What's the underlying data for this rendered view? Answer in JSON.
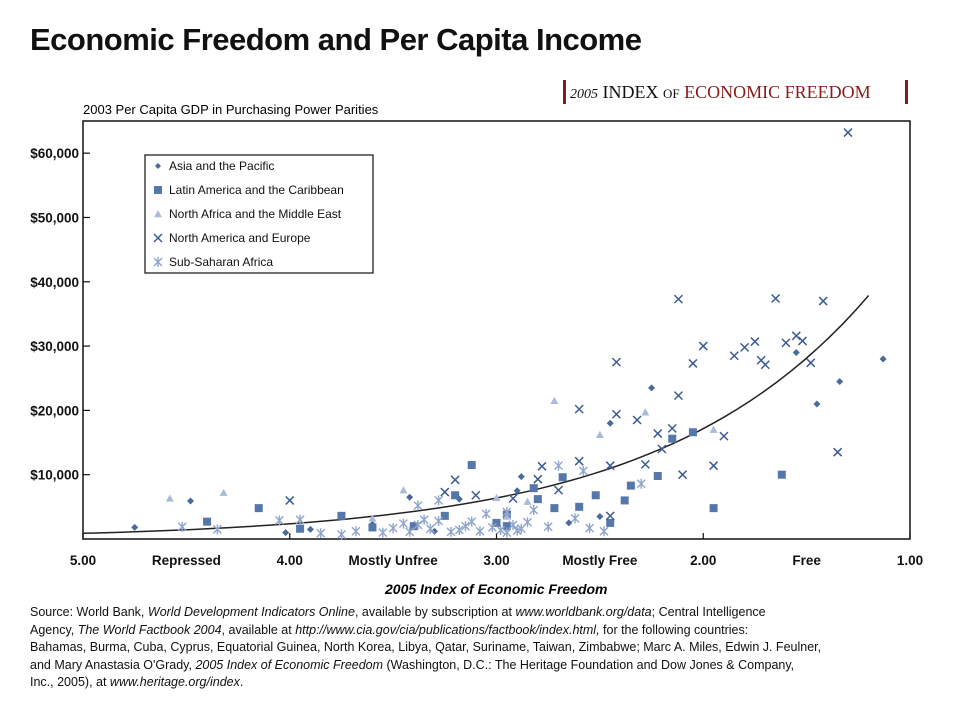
{
  "header": {
    "title": "Economic Freedom and Per Capita Income",
    "brand_year": "2005",
    "brand_index": "INDEX",
    "brand_of": "OF",
    "brand_name": "ECONOMIC FREEDOM"
  },
  "chart_data": {
    "type": "scatter",
    "ylabel": "2003 Per Capita GDP in Purchasing Power Parities",
    "xlabel": "2005 Index of Economic Freedom",
    "xlim": [
      5.0,
      1.0
    ],
    "ylim": [
      0,
      65000
    ],
    "x_reversed": true,
    "x_ticks": [
      "5.00",
      "4.00",
      "3.00",
      "2.00",
      "1.00"
    ],
    "x_tick_values": [
      5.0,
      4.0,
      3.0,
      2.0,
      1.0
    ],
    "x_category_labels": [
      "Repressed",
      "Mostly Unfree",
      "Mostly Free",
      "Free"
    ],
    "x_category_values": [
      4.5,
      3.5,
      2.5,
      1.5
    ],
    "y_ticks": [
      "$10,000",
      "$20,000",
      "$30,000",
      "$40,000",
      "$50,000",
      "$60,000"
    ],
    "y_tick_values": [
      10000,
      20000,
      30000,
      40000,
      50000,
      60000
    ],
    "grid": false,
    "legend_position": "top-left",
    "series": [
      {
        "name": "Asia and the Pacific",
        "marker": "diamond",
        "color": "#4a6a9c",
        "points": [
          [
            4.75,
            1800
          ],
          [
            4.48,
            5900
          ],
          [
            4.02,
            1000
          ],
          [
            3.6,
            2300
          ],
          [
            3.42,
            6500
          ],
          [
            3.18,
            6200
          ],
          [
            2.88,
            9700
          ],
          [
            2.9,
            7500
          ],
          [
            2.65,
            2500
          ],
          [
            2.5,
            3500
          ],
          [
            2.45,
            18000
          ],
          [
            2.25,
            23500
          ],
          [
            1.55,
            29000
          ],
          [
            1.45,
            21000
          ],
          [
            1.34,
            24500
          ],
          [
            1.13,
            28000
          ],
          [
            3.9,
            1500
          ],
          [
            3.3,
            1200
          ]
        ]
      },
      {
        "name": "Latin America and the Caribbean",
        "marker": "square",
        "color": "#5577aa",
        "points": [
          [
            4.4,
            2700
          ],
          [
            4.15,
            4800
          ],
          [
            3.95,
            1600
          ],
          [
            3.75,
            3600
          ],
          [
            3.4,
            2000
          ],
          [
            3.2,
            6800
          ],
          [
            3.12,
            11500
          ],
          [
            3.0,
            2500
          ],
          [
            2.95,
            3800
          ],
          [
            2.82,
            7900
          ],
          [
            2.8,
            6200
          ],
          [
            2.72,
            4800
          ],
          [
            2.68,
            9600
          ],
          [
            2.6,
            5000
          ],
          [
            2.52,
            6800
          ],
          [
            2.45,
            2500
          ],
          [
            2.38,
            6000
          ],
          [
            2.35,
            8300
          ],
          [
            2.22,
            9800
          ],
          [
            2.15,
            15600
          ],
          [
            2.05,
            16600
          ],
          [
            1.95,
            4800
          ],
          [
            1.62,
            10000
          ],
          [
            3.6,
            1800
          ],
          [
            3.25,
            3600
          ],
          [
            2.95,
            2000
          ]
        ]
      },
      {
        "name": "North Africa and the Middle East",
        "marker": "triangle",
        "color": "#aabbd8",
        "points": [
          [
            4.58,
            6300
          ],
          [
            4.32,
            7200
          ],
          [
            3.6,
            3200
          ],
          [
            2.95,
            3500
          ],
          [
            2.85,
            5800
          ],
          [
            2.5,
            16200
          ],
          [
            2.72,
            21500
          ],
          [
            2.28,
            19700
          ],
          [
            1.95,
            17000
          ],
          [
            3.45,
            7600
          ],
          [
            3.0,
            6400
          ]
        ]
      },
      {
        "name": "North America and Europe",
        "marker": "x",
        "color": "#3d5c94",
        "points": [
          [
            4.0,
            6000
          ],
          [
            3.25,
            7300
          ],
          [
            3.2,
            9200
          ],
          [
            3.1,
            6800
          ],
          [
            2.92,
            6300
          ],
          [
            2.78,
            11300
          ],
          [
            2.7,
            7600
          ],
          [
            2.6,
            12100
          ],
          [
            2.45,
            11400
          ],
          [
            2.6,
            20200
          ],
          [
            2.42,
            19400
          ],
          [
            2.42,
            27500
          ],
          [
            2.32,
            18500
          ],
          [
            2.28,
            11600
          ],
          [
            2.2,
            14000
          ],
          [
            2.15,
            17200
          ],
          [
            2.12,
            22300
          ],
          [
            2.12,
            37300
          ],
          [
            2.1,
            10000
          ],
          [
            2.05,
            27300
          ],
          [
            2.0,
            30000
          ],
          [
            1.95,
            11400
          ],
          [
            1.9,
            16000
          ],
          [
            1.85,
            28500
          ],
          [
            1.8,
            29800
          ],
          [
            1.75,
            30700
          ],
          [
            1.72,
            27800
          ],
          [
            1.7,
            27100
          ],
          [
            1.65,
            37400
          ],
          [
            1.6,
            30500
          ],
          [
            1.55,
            31600
          ],
          [
            1.52,
            30800
          ],
          [
            1.48,
            27400
          ],
          [
            1.42,
            37000
          ],
          [
            1.35,
            13500
          ],
          [
            1.3,
            63200
          ],
          [
            2.8,
            9300
          ],
          [
            2.45,
            3600
          ],
          [
            2.22,
            16400
          ]
        ]
      },
      {
        "name": "Sub-Saharan Africa",
        "marker": "asterisk",
        "color": "#8fa5cc",
        "points": [
          [
            4.52,
            1900
          ],
          [
            4.35,
            1500
          ],
          [
            4.05,
            2900
          ],
          [
            3.95,
            3000
          ],
          [
            3.85,
            900
          ],
          [
            3.75,
            700
          ],
          [
            3.68,
            1200
          ],
          [
            3.55,
            1000
          ],
          [
            3.5,
            1700
          ],
          [
            3.45,
            2400
          ],
          [
            3.42,
            1100
          ],
          [
            3.38,
            2200
          ],
          [
            3.35,
            3000
          ],
          [
            3.32,
            1600
          ],
          [
            3.28,
            2800
          ],
          [
            3.22,
            1100
          ],
          [
            3.18,
            1400
          ],
          [
            3.15,
            2000
          ],
          [
            3.12,
            2700
          ],
          [
            3.08,
            1200
          ],
          [
            3.05,
            3900
          ],
          [
            3.02,
            1800
          ],
          [
            2.98,
            1400
          ],
          [
            2.95,
            1000
          ],
          [
            2.92,
            2200
          ],
          [
            2.9,
            1300
          ],
          [
            2.88,
            1600
          ],
          [
            2.85,
            2600
          ],
          [
            2.82,
            4500
          ],
          [
            2.75,
            1900
          ],
          [
            2.7,
            11400
          ],
          [
            2.62,
            3200
          ],
          [
            2.58,
            10600
          ],
          [
            2.55,
            1700
          ],
          [
            2.3,
            8600
          ],
          [
            2.48,
            1200
          ],
          [
            3.38,
            5200
          ],
          [
            3.28,
            6000
          ],
          [
            2.95,
            4200
          ]
        ]
      }
    ],
    "trend_line": true
  },
  "source": {
    "l1a": "Source: World Bank, ",
    "l1b": "World Development Indicators Online",
    "l1c": ", available by subscription at ",
    "l1d": "www.worldbank.org/data",
    "l1e": "; Central Intelligence",
    "l2a": "Agency, ",
    "l2b": "The World Factbook 2004",
    "l2c": ", available at ",
    "l2d": "http://www.cia.gov/cia/publications/factbook/index.html,",
    "l2e": " for the following countries:",
    "l3": "Bahamas, Burma, Cuba, Cyprus, Equatorial Guinea, North Korea, Libya, Qatar, Suriname, Taiwan, Zimbabwe; Marc A. Miles, Edwin J. Feulner,",
    "l4a": "and Mary Anastasia O'Grady, ",
    "l4b": "2005 Index of Economic Freedom",
    "l4c": " (Washington, D.C.: The Heritage Foundation and Dow Jones & Company,",
    "l5a": "Inc., 2005), at ",
    "l5b": "www.heritage.org/index",
    "l5c": "."
  }
}
